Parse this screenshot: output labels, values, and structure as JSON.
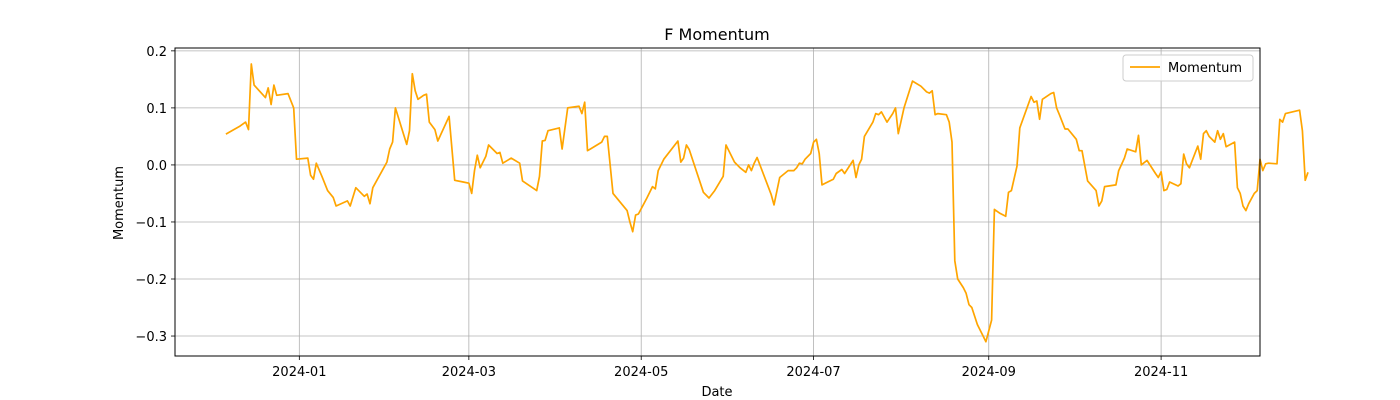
{
  "chart_data": {
    "type": "line",
    "title": "F Momentum",
    "xlabel": "Date",
    "ylabel": "Momentum",
    "grid": true,
    "legend_position": "top-right",
    "colors": {
      "series": "#ffa500",
      "grid": "#b0b0b0",
      "axis": "#000000"
    },
    "xlim": [
      "2023-11-18",
      "2024-12-06"
    ],
    "ylim": [
      -0.335,
      0.205
    ],
    "xticks": [
      {
        "date": "2024-01-01",
        "label": "2024-01"
      },
      {
        "date": "2024-03-01",
        "label": "2024-03"
      },
      {
        "date": "2024-05-01",
        "label": "2024-05"
      },
      {
        "date": "2024-07-01",
        "label": "2024-07"
      },
      {
        "date": "2024-09-01",
        "label": "2024-09"
      },
      {
        "date": "2024-11-01",
        "label": "2024-11"
      }
    ],
    "yticks": [
      {
        "value": 0.2,
        "label": "0.2"
      },
      {
        "value": 0.1,
        "label": "0.1"
      },
      {
        "value": 0.0,
        "label": "0.0"
      },
      {
        "value": -0.1,
        "label": "−0.1"
      },
      {
        "value": -0.2,
        "label": "−0.2"
      },
      {
        "value": -0.3,
        "label": "−0.3"
      }
    ],
    "series": [
      {
        "name": "Momentum",
        "points": [
          [
            "2023-12-06",
            0.054
          ],
          [
            "2023-12-11",
            0.068
          ],
          [
            "2023-12-13",
            0.075
          ],
          [
            "2023-12-14",
            0.062
          ],
          [
            "2023-12-15",
            0.177
          ],
          [
            "2023-12-16",
            0.14
          ],
          [
            "2023-12-20",
            0.118
          ],
          [
            "2023-12-21",
            0.135
          ],
          [
            "2023-12-22",
            0.106
          ],
          [
            "2023-12-23",
            0.14
          ],
          [
            "2023-12-24",
            0.122
          ],
          [
            "2023-12-28",
            0.125
          ],
          [
            "2023-12-30",
            0.1
          ],
          [
            "2023-12-31",
            0.01
          ],
          [
            "2024-01-04",
            0.012
          ],
          [
            "2024-01-05",
            -0.018
          ],
          [
            "2024-01-06",
            -0.025
          ],
          [
            "2024-01-07",
            0.003
          ],
          [
            "2024-01-09",
            -0.02
          ],
          [
            "2024-01-11",
            -0.045
          ],
          [
            "2024-01-13",
            -0.057
          ],
          [
            "2024-01-14",
            -0.072
          ],
          [
            "2024-01-18",
            -0.063
          ],
          [
            "2024-01-19",
            -0.072
          ],
          [
            "2024-01-21",
            -0.04
          ],
          [
            "2024-01-24",
            -0.055
          ],
          [
            "2024-01-25",
            -0.051
          ],
          [
            "2024-01-26",
            -0.068
          ],
          [
            "2024-01-27",
            -0.04
          ],
          [
            "2024-02-01",
            0.005
          ],
          [
            "2024-02-02",
            0.028
          ],
          [
            "2024-02-03",
            0.04
          ],
          [
            "2024-02-04",
            0.1
          ],
          [
            "2024-02-08",
            0.036
          ],
          [
            "2024-02-09",
            0.06
          ],
          [
            "2024-02-10",
            0.16
          ],
          [
            "2024-02-11",
            0.13
          ],
          [
            "2024-02-12",
            0.115
          ],
          [
            "2024-02-14",
            0.122
          ],
          [
            "2024-02-15",
            0.124
          ],
          [
            "2024-02-16",
            0.075
          ],
          [
            "2024-02-18",
            0.062
          ],
          [
            "2024-02-19",
            0.042
          ],
          [
            "2024-02-23",
            0.085
          ],
          [
            "2024-02-25",
            -0.027
          ],
          [
            "2024-02-28",
            -0.03
          ],
          [
            "2024-03-01",
            -0.032
          ],
          [
            "2024-03-02",
            -0.05
          ],
          [
            "2024-03-03",
            -0.01
          ],
          [
            "2024-03-04",
            0.017
          ],
          [
            "2024-03-05",
            -0.005
          ],
          [
            "2024-03-07",
            0.015
          ],
          [
            "2024-03-08",
            0.035
          ],
          [
            "2024-03-11",
            0.02
          ],
          [
            "2024-03-12",
            0.022
          ],
          [
            "2024-03-13",
            0.003
          ],
          [
            "2024-03-16",
            0.012
          ],
          [
            "2024-03-19",
            0.003
          ],
          [
            "2024-03-20",
            -0.028
          ],
          [
            "2024-03-25",
            -0.045
          ],
          [
            "2024-03-26",
            -0.02
          ],
          [
            "2024-03-27",
            0.042
          ],
          [
            "2024-03-28",
            0.043
          ],
          [
            "2024-03-29",
            0.06
          ],
          [
            "2024-04-02",
            0.065
          ],
          [
            "2024-04-03",
            0.028
          ],
          [
            "2024-04-05",
            0.1
          ],
          [
            "2024-04-09",
            0.103
          ],
          [
            "2024-04-10",
            0.09
          ],
          [
            "2024-04-11",
            0.11
          ],
          [
            "2024-04-12",
            0.025
          ],
          [
            "2024-04-13",
            0.028
          ],
          [
            "2024-04-17",
            0.04
          ],
          [
            "2024-04-18",
            0.05
          ],
          [
            "2024-04-19",
            0.05
          ],
          [
            "2024-04-21",
            -0.05
          ],
          [
            "2024-04-26",
            -0.08
          ],
          [
            "2024-04-27",
            -0.1
          ],
          [
            "2024-04-28",
            -0.117
          ],
          [
            "2024-04-29",
            -0.088
          ],
          [
            "2024-04-30",
            -0.086
          ],
          [
            "2024-05-03",
            -0.058
          ],
          [
            "2024-05-05",
            -0.038
          ],
          [
            "2024-05-06",
            -0.042
          ],
          [
            "2024-05-07",
            -0.01
          ],
          [
            "2024-05-09",
            0.01
          ],
          [
            "2024-05-14",
            0.042
          ],
          [
            "2024-05-15",
            0.005
          ],
          [
            "2024-05-16",
            0.012
          ],
          [
            "2024-05-17",
            0.035
          ],
          [
            "2024-05-18",
            0.027
          ],
          [
            "2024-05-23",
            -0.048
          ],
          [
            "2024-05-25",
            -0.058
          ],
          [
            "2024-05-27",
            -0.045
          ],
          [
            "2024-05-30",
            -0.02
          ],
          [
            "2024-05-31",
            0.035
          ],
          [
            "2024-06-03",
            0.005
          ],
          [
            "2024-06-05",
            -0.005
          ],
          [
            "2024-06-07",
            -0.013
          ],
          [
            "2024-06-08",
            0.0
          ],
          [
            "2024-06-09",
            -0.01
          ],
          [
            "2024-06-10",
            0.003
          ],
          [
            "2024-06-11",
            0.013
          ],
          [
            "2024-06-16",
            -0.052
          ],
          [
            "2024-06-17",
            -0.07
          ],
          [
            "2024-06-19",
            -0.022
          ],
          [
            "2024-06-22",
            -0.01
          ],
          [
            "2024-06-23",
            -0.01
          ],
          [
            "2024-06-24",
            -0.01
          ],
          [
            "2024-06-25",
            -0.005
          ],
          [
            "2024-06-26",
            0.003
          ],
          [
            "2024-06-27",
            0.002
          ],
          [
            "2024-06-28",
            0.01
          ],
          [
            "2024-06-30",
            0.02
          ],
          [
            "2024-07-01",
            0.04
          ],
          [
            "2024-07-02",
            0.045
          ],
          [
            "2024-07-03",
            0.02
          ],
          [
            "2024-07-04",
            -0.035
          ],
          [
            "2024-07-06",
            -0.03
          ],
          [
            "2024-07-08",
            -0.025
          ],
          [
            "2024-07-09",
            -0.015
          ],
          [
            "2024-07-11",
            -0.008
          ],
          [
            "2024-07-12",
            -0.015
          ],
          [
            "2024-07-15",
            0.008
          ],
          [
            "2024-07-16",
            -0.022
          ],
          [
            "2024-07-17",
            0.0
          ],
          [
            "2024-07-18",
            0.01
          ],
          [
            "2024-07-19",
            0.05
          ],
          [
            "2024-07-22",
            0.075
          ],
          [
            "2024-07-23",
            0.09
          ],
          [
            "2024-07-24",
            0.088
          ],
          [
            "2024-07-25",
            0.093
          ],
          [
            "2024-07-27",
            0.075
          ],
          [
            "2024-07-29",
            0.09
          ],
          [
            "2024-07-30",
            0.1
          ],
          [
            "2024-07-31",
            0.055
          ],
          [
            "2024-08-02",
            0.1
          ],
          [
            "2024-08-05",
            0.147
          ],
          [
            "2024-08-08",
            0.138
          ],
          [
            "2024-08-10",
            0.128
          ],
          [
            "2024-08-11",
            0.126
          ],
          [
            "2024-08-12",
            0.13
          ],
          [
            "2024-08-13",
            0.088
          ],
          [
            "2024-08-14",
            0.09
          ],
          [
            "2024-08-17",
            0.088
          ],
          [
            "2024-08-18",
            0.075
          ],
          [
            "2024-08-19",
            0.04
          ],
          [
            "2024-08-20",
            -0.168
          ],
          [
            "2024-08-21",
            -0.2
          ],
          [
            "2024-08-23",
            -0.215
          ],
          [
            "2024-08-24",
            -0.225
          ],
          [
            "2024-08-25",
            -0.245
          ],
          [
            "2024-08-26",
            -0.25
          ],
          [
            "2024-08-28",
            -0.28
          ],
          [
            "2024-08-30",
            -0.3
          ],
          [
            "2024-08-31",
            -0.31
          ],
          [
            "2024-09-02",
            -0.272
          ],
          [
            "2024-09-03",
            -0.078
          ],
          [
            "2024-09-05",
            -0.085
          ],
          [
            "2024-09-07",
            -0.09
          ],
          [
            "2024-09-08",
            -0.048
          ],
          [
            "2024-09-09",
            -0.045
          ],
          [
            "2024-09-11",
            -0.002
          ],
          [
            "2024-09-12",
            0.065
          ],
          [
            "2024-09-16",
            0.12
          ],
          [
            "2024-09-17",
            0.11
          ],
          [
            "2024-09-18",
            0.112
          ],
          [
            "2024-09-19",
            0.08
          ],
          [
            "2024-09-20",
            0.115
          ],
          [
            "2024-09-23",
            0.125
          ],
          [
            "2024-09-24",
            0.127
          ],
          [
            "2024-09-25",
            0.1
          ],
          [
            "2024-09-26",
            0.088
          ],
          [
            "2024-09-28",
            0.063
          ],
          [
            "2024-09-29",
            0.063
          ],
          [
            "2024-10-02",
            0.045
          ],
          [
            "2024-10-03",
            0.025
          ],
          [
            "2024-10-04",
            0.025
          ],
          [
            "2024-10-06",
            -0.028
          ],
          [
            "2024-10-09",
            -0.045
          ],
          [
            "2024-10-10",
            -0.072
          ],
          [
            "2024-10-11",
            -0.063
          ],
          [
            "2024-10-12",
            -0.038
          ],
          [
            "2024-10-16",
            -0.035
          ],
          [
            "2024-10-17",
            -0.01
          ],
          [
            "2024-10-19",
            0.012
          ],
          [
            "2024-10-20",
            0.028
          ],
          [
            "2024-10-23",
            0.023
          ],
          [
            "2024-10-24",
            0.052
          ],
          [
            "2024-10-25",
            0.0
          ],
          [
            "2024-10-27",
            0.008
          ],
          [
            "2024-10-30",
            -0.015
          ],
          [
            "2024-10-31",
            -0.022
          ],
          [
            "2024-11-01",
            -0.012
          ],
          [
            "2024-11-02",
            -0.045
          ],
          [
            "2024-11-03",
            -0.043
          ],
          [
            "2024-11-04",
            -0.03
          ],
          [
            "2024-11-07",
            -0.037
          ],
          [
            "2024-11-08",
            -0.033
          ],
          [
            "2024-11-09",
            0.019
          ],
          [
            "2024-11-10",
            0.002
          ],
          [
            "2024-11-11",
            -0.005
          ],
          [
            "2024-11-14",
            0.033
          ],
          [
            "2024-11-15",
            0.01
          ],
          [
            "2024-11-16",
            0.055
          ],
          [
            "2024-11-17",
            0.06
          ],
          [
            "2024-11-18",
            0.05
          ],
          [
            "2024-11-20",
            0.04
          ],
          [
            "2024-11-21",
            0.06
          ],
          [
            "2024-11-22",
            0.045
          ],
          [
            "2024-11-23",
            0.055
          ],
          [
            "2024-11-24",
            0.032
          ],
          [
            "2024-11-27",
            0.04
          ],
          [
            "2024-11-28",
            -0.04
          ],
          [
            "2024-11-29",
            -0.05
          ],
          [
            "2024-11-30",
            -0.072
          ],
          [
            "2024-12-01",
            -0.08
          ],
          [
            "2024-12-02",
            -0.068
          ],
          [
            "2024-12-04",
            -0.05
          ],
          [
            "2024-12-05",
            -0.045
          ],
          [
            "2024-12-06",
            0.01
          ],
          [
            "2024-12-07",
            -0.01
          ],
          [
            "2024-12-08",
            0.002
          ],
          [
            "2024-12-09",
            0.003
          ],
          [
            "2024-12-12",
            0.002
          ],
          [
            "2024-12-13",
            0.08
          ],
          [
            "2024-12-14",
            0.075
          ],
          [
            "2024-12-15",
            0.09
          ],
          [
            "2024-12-20",
            0.096
          ],
          [
            "2024-12-21",
            0.06
          ],
          [
            "2024-12-22",
            -0.027
          ],
          [
            "2024-12-23",
            -0.013
          ]
        ]
      }
    ]
  }
}
